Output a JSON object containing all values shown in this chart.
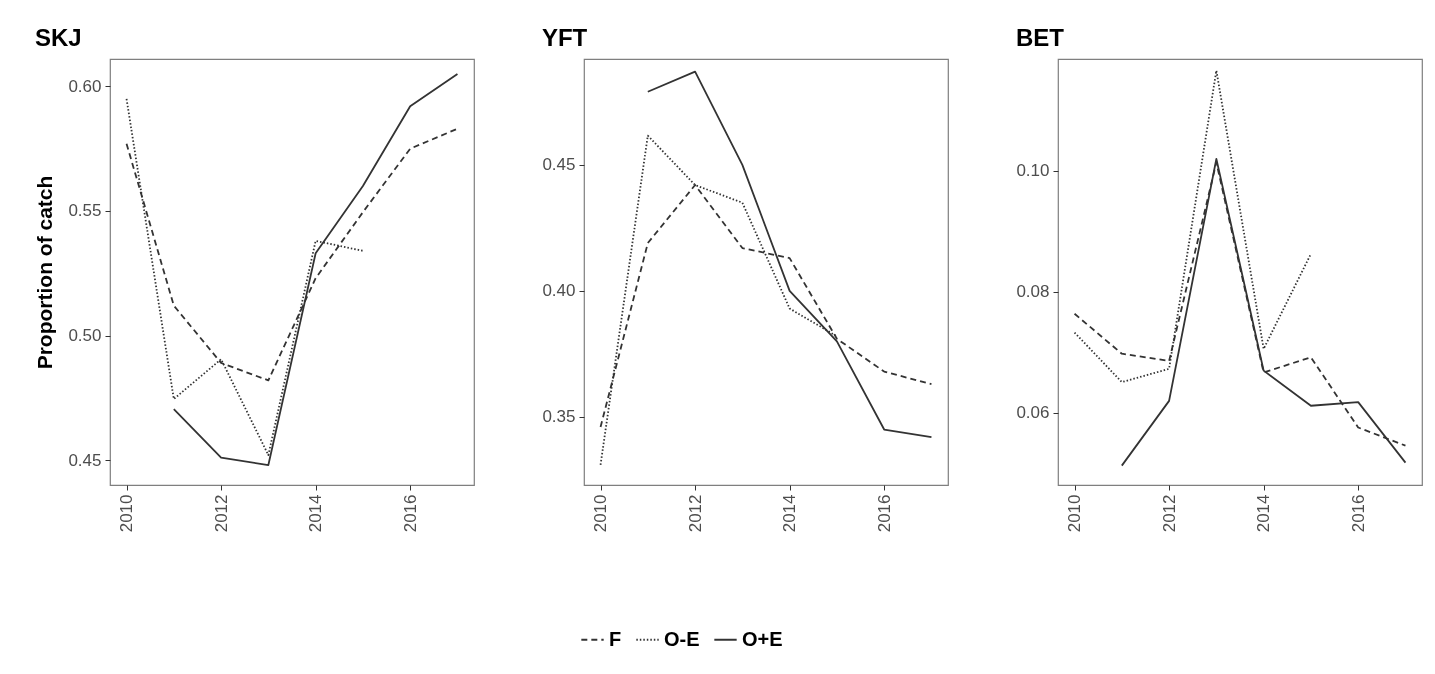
{
  "chart_data": [
    {
      "type": "line",
      "title": "SKJ",
      "ylabel": "Proportion of catch",
      "x": [
        2010,
        2011,
        2012,
        2013,
        2014,
        2015,
        2016,
        2017
      ],
      "xlim": [
        2009.65,
        2017.35
      ],
      "xticks": [
        2010,
        2012,
        2014,
        2016
      ],
      "ylim": [
        0.44,
        0.611
      ],
      "yticks": [
        {
          "value": 0.45,
          "label": "0.45"
        },
        {
          "value": 0.5,
          "label": "0.50"
        },
        {
          "value": 0.55,
          "label": "0.55"
        },
        {
          "value": 0.6,
          "label": "0.60"
        }
      ],
      "grid": false,
      "legend": "bottom",
      "series": [
        {
          "name": "F",
          "color": "#333333",
          "line_style": "dashed",
          "values": [
            0.577,
            0.512,
            0.489,
            0.482,
            0.523,
            0.5495,
            0.575,
            0.583
          ]
        },
        {
          "name": "O-E",
          "color": "#333333",
          "line_style": "dotted",
          "values": [
            0.595,
            0.4745,
            0.4905,
            0.452,
            0.538,
            0.534,
            null,
            null
          ]
        },
        {
          "name": "O+E",
          "color": "#333333",
          "line_style": "solid",
          "values": [
            null,
            0.4705,
            0.451,
            0.448,
            0.533,
            0.56,
            0.592,
            0.605
          ]
        }
      ]
    },
    {
      "type": "line",
      "title": "YFT",
      "x": [
        2010,
        2011,
        2012,
        2013,
        2014,
        2015,
        2016,
        2017
      ],
      "xlim": [
        2009.65,
        2017.35
      ],
      "xticks": [
        2010,
        2012,
        2014,
        2016
      ],
      "ylim": [
        0.323,
        0.492
      ],
      "yticks": [
        {
          "value": 0.35,
          "label": "0.35"
        },
        {
          "value": 0.4,
          "label": "0.40"
        },
        {
          "value": 0.45,
          "label": "0.45"
        }
      ],
      "grid": false,
      "series": [
        {
          "name": "F",
          "color": "#333333",
          "line_style": "dashed",
          "values": [
            0.346,
            0.419,
            0.442,
            0.417,
            0.413,
            0.381,
            0.368,
            0.363
          ]
        },
        {
          "name": "O-E",
          "color": "#333333",
          "line_style": "dotted",
          "values": [
            0.331,
            0.4616,
            0.442,
            0.435,
            0.393,
            0.382,
            null,
            null
          ]
        },
        {
          "name": "O+E",
          "color": "#333333",
          "line_style": "solid",
          "values": [
            null,
            0.479,
            0.487,
            0.45,
            0.4,
            0.38,
            0.345,
            0.342
          ]
        }
      ]
    },
    {
      "type": "line",
      "title": "BET",
      "x": [
        2010,
        2011,
        2012,
        2013,
        2014,
        2015,
        2016,
        2017
      ],
      "xlim": [
        2009.65,
        2017.35
      ],
      "xticks": [
        2010,
        2012,
        2014,
        2016
      ],
      "ylim": [
        0.0481,
        0.1185
      ],
      "yticks": [
        {
          "value": 0.06,
          "label": "0.06"
        },
        {
          "value": 0.08,
          "label": "0.08"
        },
        {
          "value": 0.1,
          "label": "0.10"
        }
      ],
      "grid": false,
      "series": [
        {
          "name": "F",
          "color": "#333333",
          "line_style": "dashed",
          "values": [
            0.0764,
            0.0698,
            0.0686,
            0.1014,
            0.0667,
            0.0692,
            0.0576,
            0.0546
          ]
        },
        {
          "name": "O-E",
          "color": "#333333",
          "line_style": "dotted",
          "values": [
            0.0733,
            0.0651,
            0.0673,
            0.1166,
            0.0706,
            0.0863,
            null,
            null
          ]
        },
        {
          "name": "O+E",
          "color": "#333333",
          "line_style": "solid",
          "values": [
            null,
            0.0513,
            0.062,
            0.102,
            0.067,
            0.0612,
            0.0618,
            0.0518
          ]
        }
      ]
    }
  ]
}
